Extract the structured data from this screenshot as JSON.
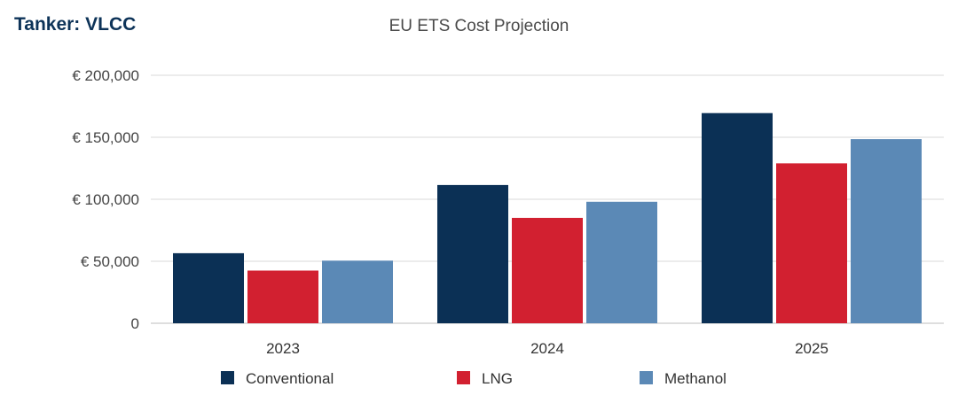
{
  "header": {
    "tanker_label": "Tanker: VLCC"
  },
  "chart_data": {
    "type": "bar",
    "title": "EU ETS Cost Projection",
    "xlabel": "",
    "ylabel": "",
    "categories": [
      "2023",
      "2024",
      "2025"
    ],
    "series": [
      {
        "name": "Conventional",
        "color": "#0b3055",
        "values": [
          56500,
          111500,
          169500
        ]
      },
      {
        "name": "LNG",
        "color": "#d22030",
        "values": [
          42500,
          85000,
          129000
        ]
      },
      {
        "name": "Methanol",
        "color": "#5b89b6",
        "values": [
          50500,
          98000,
          148500
        ]
      }
    ],
    "ylim": [
      0,
      200000
    ],
    "yticks": [
      {
        "value": 0,
        "label": "0"
      },
      {
        "value": 50000,
        "label": "€ 50,000"
      },
      {
        "value": 100000,
        "label": "€ 100,000"
      },
      {
        "value": 150000,
        "label": "€ 150,000"
      },
      {
        "value": 200000,
        "label": "€ 200,000"
      }
    ],
    "grid": true,
    "legend_position": "bottom"
  }
}
